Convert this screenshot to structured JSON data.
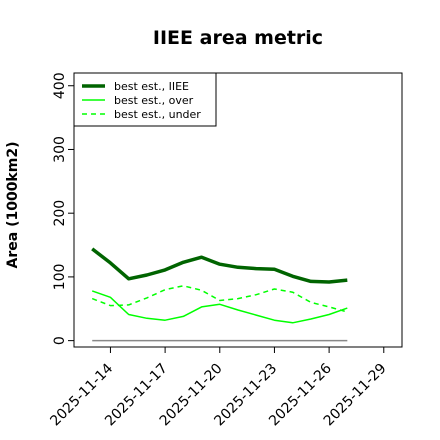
{
  "chart_data": {
    "type": "line",
    "title": "IIEE area metric",
    "xlabel": "",
    "ylabel": "Area (1000km2)",
    "ylim": [
      -10,
      420
    ],
    "xlim": [
      "2025-11-12",
      "2025-11-30"
    ],
    "yticks": [
      0,
      100,
      200,
      300,
      400
    ],
    "xticks": [
      "2025-11-14",
      "2025-11-17",
      "2025-11-20",
      "2025-11-23",
      "2025-11-26",
      "2025-11-29"
    ],
    "x": [
      "2025-11-13",
      "2025-11-14",
      "2025-11-15",
      "2025-11-16",
      "2025-11-17",
      "2025-11-18",
      "2025-11-19",
      "2025-11-20",
      "2025-11-21",
      "2025-11-22",
      "2025-11-23",
      "2025-11-24",
      "2025-11-25",
      "2025-11-26",
      "2025-11-27"
    ],
    "series": [
      {
        "name": "best est., IIEE",
        "color": "#006400",
        "style": "solid",
        "width": "thick",
        "values": [
          144,
          122,
          97,
          103,
          111,
          123,
          131,
          120,
          115,
          113,
          112,
          101,
          93,
          92,
          95
        ]
      },
      {
        "name": "best est., over",
        "color": "#00ff00",
        "style": "solid",
        "width": "thin",
        "values": [
          78,
          68,
          41,
          35,
          32,
          38,
          53,
          57,
          48,
          40,
          32,
          28,
          34,
          41,
          51
        ]
      },
      {
        "name": "best est., under",
        "color": "#00ff00",
        "style": "dashed",
        "width": "thin",
        "values": [
          66,
          55,
          56,
          67,
          80,
          86,
          79,
          63,
          66,
          72,
          81,
          76,
          60,
          53,
          45
        ]
      }
    ],
    "reference_line": {
      "y": 0,
      "color": "#888888"
    },
    "grid": false,
    "legend": "top-left"
  }
}
